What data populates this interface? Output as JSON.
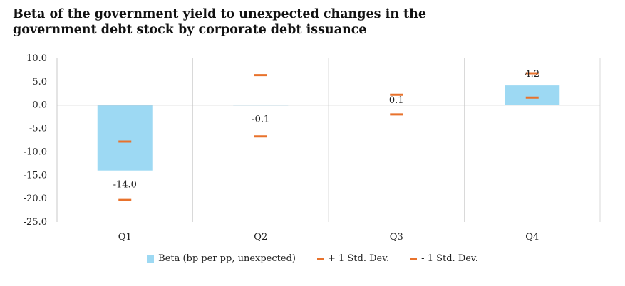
{
  "chart_data": {
    "type": "bar",
    "title_line1": "Beta of the government yield to unexpected changes in the",
    "title_line2": "government debt stock by corporate debt issuance",
    "categories": [
      "Q1",
      "Q2",
      "Q3",
      "Q4"
    ],
    "series": [
      {
        "name": "Beta (bp per pp, unexpected)",
        "kind": "bar",
        "values": [
          -14.0,
          -0.1,
          0.1,
          4.2
        ],
        "color": "#9dd9f3"
      },
      {
        "name": "+ 1 Std. Dev.",
        "kind": "marker",
        "values": [
          -7.8,
          6.4,
          2.2,
          6.8
        ],
        "color": "#e8722c"
      },
      {
        "name": "- 1 Std. Dev.",
        "kind": "marker",
        "values": [
          -20.3,
          -6.7,
          -2.0,
          1.6
        ],
        "color": "#e8722c"
      }
    ],
    "data_labels": [
      "-14.0",
      "-0.1",
      "0.1",
      "4.2"
    ],
    "y_ticks": [
      "10.0",
      "5.0",
      "0.0",
      "-5.0",
      "-10.0",
      "-15.0",
      "-20.0",
      "-25.0"
    ],
    "ylim": [
      -25,
      10
    ],
    "grid": "vertical category separators",
    "legend_position": "bottom"
  }
}
